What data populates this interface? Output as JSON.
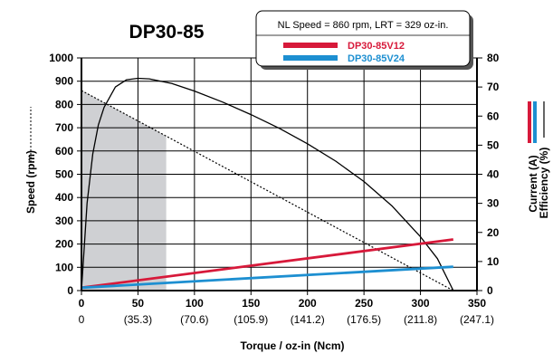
{
  "chart_data": {
    "type": "line",
    "title": "DP30-85",
    "xlabel": "Torque / oz-in (Ncm)",
    "ylabel_left": "Speed (rpm)",
    "ylabel_right": [
      "Current (A)",
      "Efficiency (%)"
    ],
    "xlim": [
      0,
      350
    ],
    "ylim_left": [
      0,
      1000
    ],
    "ylim_right": [
      0,
      80
    ],
    "x_ticks": [
      "0",
      "50",
      "100",
      "150",
      "200",
      "250",
      "300",
      "350"
    ],
    "x_ticks_ncm": [
      "0",
      "(35.3)",
      "(70.6)",
      "(105.9)",
      "(141.2)",
      "(176.5)",
      "(211.8)",
      "(247.1)"
    ],
    "y_left_ticks": [
      "0",
      "100",
      "200",
      "300",
      "400",
      "500",
      "600",
      "700",
      "800",
      "900",
      "1000"
    ],
    "y_right_ticks": [
      "0",
      "10",
      "20",
      "30",
      "40",
      "50",
      "60",
      "70",
      "80"
    ],
    "legend": {
      "header": "NL Speed = 860 rpm, LRT = 329 oz-in.",
      "position": "top-right",
      "entries": [
        {
          "label": "DP30-85V12",
          "color": "#d7193a"
        },
        {
          "label": "DP30-85V24",
          "color": "#1d8fd1"
        }
      ]
    },
    "shaded_region": {
      "x_end": 75,
      "color": "#cfd0d3"
    },
    "series": [
      {
        "axis": "left",
        "style": "dotted",
        "color": "#000000",
        "x": [
          0,
          329
        ],
        "y": [
          860,
          0
        ]
      },
      {
        "axis": "right",
        "style": "solid",
        "color": "#000000",
        "x": [
          0,
          5,
          10,
          15,
          20,
          30,
          40,
          50,
          60,
          80,
          100,
          125,
          150,
          175,
          200,
          225,
          250,
          275,
          300,
          315,
          329
        ],
        "y": [
          0,
          30,
          47,
          57,
          63,
          70,
          72.5,
          73,
          72.8,
          71.2,
          68.6,
          64.8,
          60.5,
          55.8,
          50.5,
          44.5,
          37.5,
          29,
          18.5,
          11,
          0
        ]
      },
      {
        "name": "DP30-85V12",
        "axis": "right",
        "style": "solid",
        "color": "#d7193a",
        "x": [
          0,
          329
        ],
        "y": [
          1,
          17.6
        ]
      },
      {
        "name": "DP30-85V24",
        "axis": "right",
        "style": "solid",
        "color": "#1d8fd1",
        "x": [
          0,
          329
        ],
        "y": [
          1,
          8.2
        ]
      }
    ]
  }
}
